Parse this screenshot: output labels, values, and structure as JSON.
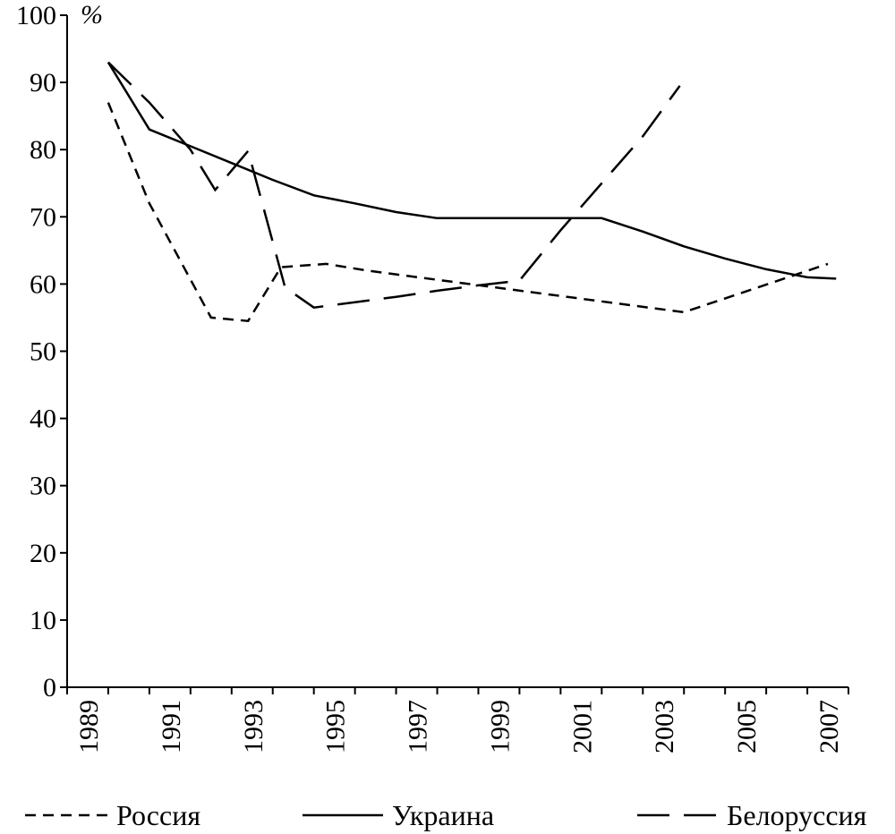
{
  "chart_data": {
    "type": "line",
    "unit_label": "%",
    "ylim": [
      0,
      100
    ],
    "y_ticks": [
      0,
      10,
      20,
      30,
      40,
      50,
      60,
      70,
      80,
      90,
      100
    ],
    "xlim": [
      1989,
      2008
    ],
    "x_tick_labels": [
      "1989",
      "1991",
      "1993",
      "1995",
      "1997",
      "1999",
      "2001",
      "2003",
      "2005",
      "2007"
    ],
    "grid": false,
    "legend_position": "bottom",
    "series": [
      {
        "name": "Россия",
        "style": "short-dash",
        "x": [
          1990,
          1991,
          1992.5,
          1993.4,
          1994.2,
          1995.3,
          1996.3,
          2004,
          2007.5
        ],
        "y": [
          87,
          72,
          55,
          54.5,
          62.5,
          63,
          62,
          55.8,
          63
        ]
      },
      {
        "name": "Украина",
        "style": "solid",
        "x": [
          1990,
          1991,
          1992,
          1993,
          1994,
          1995,
          1996,
          1997,
          1998,
          1999,
          2000,
          2001,
          2002,
          2003,
          2004,
          2005,
          2006,
          2007,
          2007.7
        ],
        "y": [
          93,
          83,
          80.5,
          78,
          75.5,
          73.2,
          72,
          70.7,
          69.8,
          69.8,
          69.8,
          69.8,
          69.8,
          67.8,
          65.6,
          63.8,
          62.2,
          61,
          60.8
        ]
      },
      {
        "name": "Белоруссия",
        "style": "long-dash",
        "x": [
          1990,
          1991,
          1992,
          1992.6,
          1993.4,
          1994.3,
          1995,
          1996,
          1997,
          1998,
          1999,
          2000,
          2001,
          2002,
          2003,
          2003.9
        ],
        "y": [
          93,
          87,
          80,
          74,
          79.8,
          59.5,
          56.5,
          57.3,
          58.1,
          59,
          59.8,
          60.5,
          68,
          75,
          82,
          89.5
        ]
      }
    ]
  }
}
